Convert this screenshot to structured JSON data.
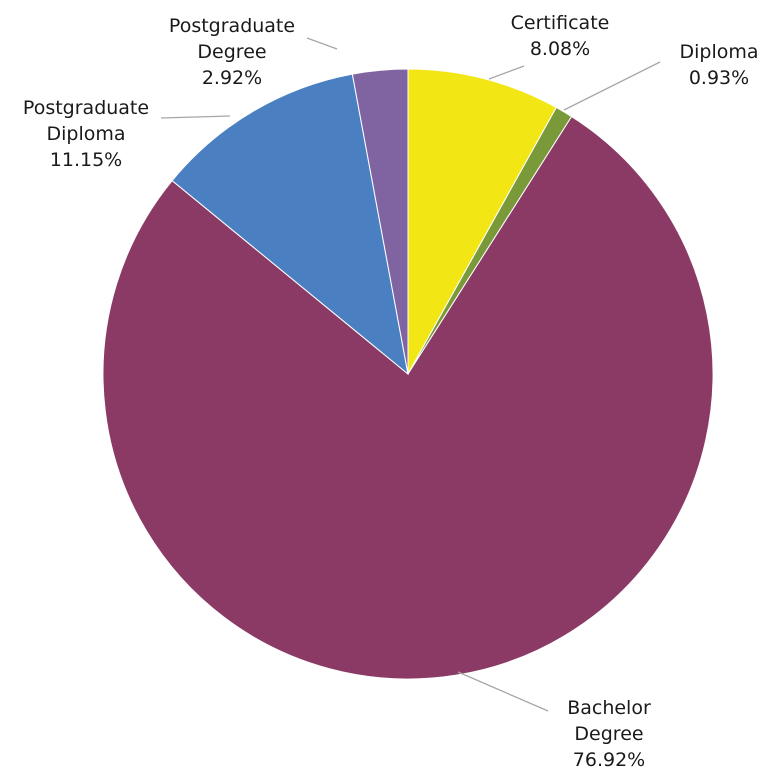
{
  "chart_data": {
    "type": "pie",
    "title": "",
    "start_angle_deg": 0,
    "direction": "clockwise",
    "legend": "none",
    "slices": [
      {
        "name": "Certificate",
        "label_lines": [
          "Certificate"
        ],
        "value": 8.08,
        "value_label": "8.08%",
        "color": "#f2e614"
      },
      {
        "name": "Diploma",
        "label_lines": [
          "Diploma"
        ],
        "value": 0.93,
        "value_label": "0.93%",
        "color": "#7a9a3a"
      },
      {
        "name": "Bachelor Degree",
        "label_lines": [
          "Bachelor",
          "Degree"
        ],
        "value": 76.92,
        "value_label": "76.92%",
        "color": "#8b3a66"
      },
      {
        "name": "Postgraduate Diploma",
        "label_lines": [
          "Postgraduate",
          "Diploma"
        ],
        "value": 11.15,
        "value_label": "11.15%",
        "color": "#4a80c2"
      },
      {
        "name": "Postgraduate Degree",
        "label_lines": [
          "Postgraduate",
          "Degree"
        ],
        "value": 2.92,
        "value_label": "2.92%",
        "color": "#8064a2"
      }
    ]
  }
}
